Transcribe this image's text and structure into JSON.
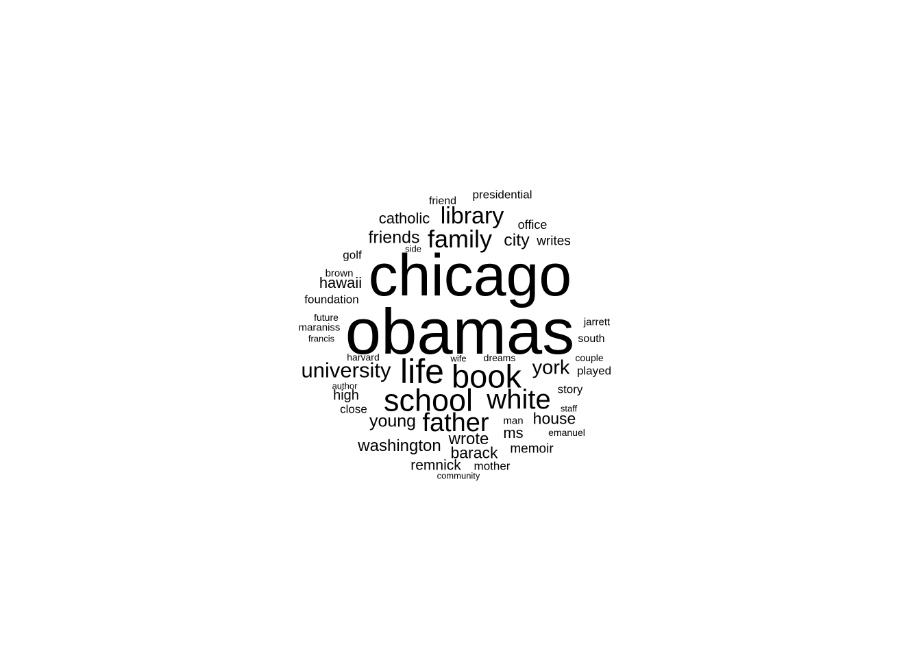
{
  "word_cloud": {
    "text_color": "#000000",
    "background_color": "#ffffff",
    "words": [
      {
        "id": "chicago",
        "text": "chicago"
      },
      {
        "id": "obamas",
        "text": "obamas"
      },
      {
        "id": "life",
        "text": "life"
      },
      {
        "id": "book",
        "text": "book"
      },
      {
        "id": "school",
        "text": "school"
      },
      {
        "id": "white",
        "text": "white"
      },
      {
        "id": "father",
        "text": "father"
      },
      {
        "id": "family",
        "text": "family"
      },
      {
        "id": "library",
        "text": "library"
      },
      {
        "id": "university",
        "text": "university"
      },
      {
        "id": "york",
        "text": "york"
      },
      {
        "id": "friends",
        "text": "friends"
      },
      {
        "id": "washington",
        "text": "washington"
      },
      {
        "id": "young",
        "text": "young"
      },
      {
        "id": "wrote",
        "text": "wrote"
      },
      {
        "id": "barack",
        "text": "barack"
      },
      {
        "id": "house",
        "text": "house"
      },
      {
        "id": "city",
        "text": "city"
      },
      {
        "id": "catholic",
        "text": "catholic"
      },
      {
        "id": "hawaii",
        "text": "hawaii"
      },
      {
        "id": "ms",
        "text": "ms"
      },
      {
        "id": "remnick",
        "text": "remnick"
      },
      {
        "id": "high",
        "text": "high"
      },
      {
        "id": "memoir",
        "text": "memoir"
      },
      {
        "id": "writes",
        "text": "writes"
      },
      {
        "id": "foundation",
        "text": "foundation"
      },
      {
        "id": "presidential",
        "text": "presidential"
      },
      {
        "id": "office",
        "text": "office"
      },
      {
        "id": "golf",
        "text": "golf"
      },
      {
        "id": "story",
        "text": "story"
      },
      {
        "id": "played",
        "text": "played"
      },
      {
        "id": "mother",
        "text": "mother"
      },
      {
        "id": "close",
        "text": "close"
      },
      {
        "id": "friend",
        "text": "friend"
      },
      {
        "id": "south",
        "text": "south"
      },
      {
        "id": "maraniss",
        "text": "maraniss"
      },
      {
        "id": "jarrett",
        "text": "jarrett"
      },
      {
        "id": "brown",
        "text": "brown"
      },
      {
        "id": "future",
        "text": "future"
      },
      {
        "id": "man",
        "text": "man"
      },
      {
        "id": "couple",
        "text": "couple"
      },
      {
        "id": "emanuel",
        "text": "emanuel"
      },
      {
        "id": "dreams",
        "text": "dreams"
      },
      {
        "id": "harvard",
        "text": "harvard"
      },
      {
        "id": "francis",
        "text": "francis"
      },
      {
        "id": "author",
        "text": "author"
      },
      {
        "id": "staff",
        "text": "staff"
      },
      {
        "id": "community",
        "text": "community"
      },
      {
        "id": "side",
        "text": "side"
      },
      {
        "id": "wife",
        "text": "wife"
      }
    ]
  }
}
